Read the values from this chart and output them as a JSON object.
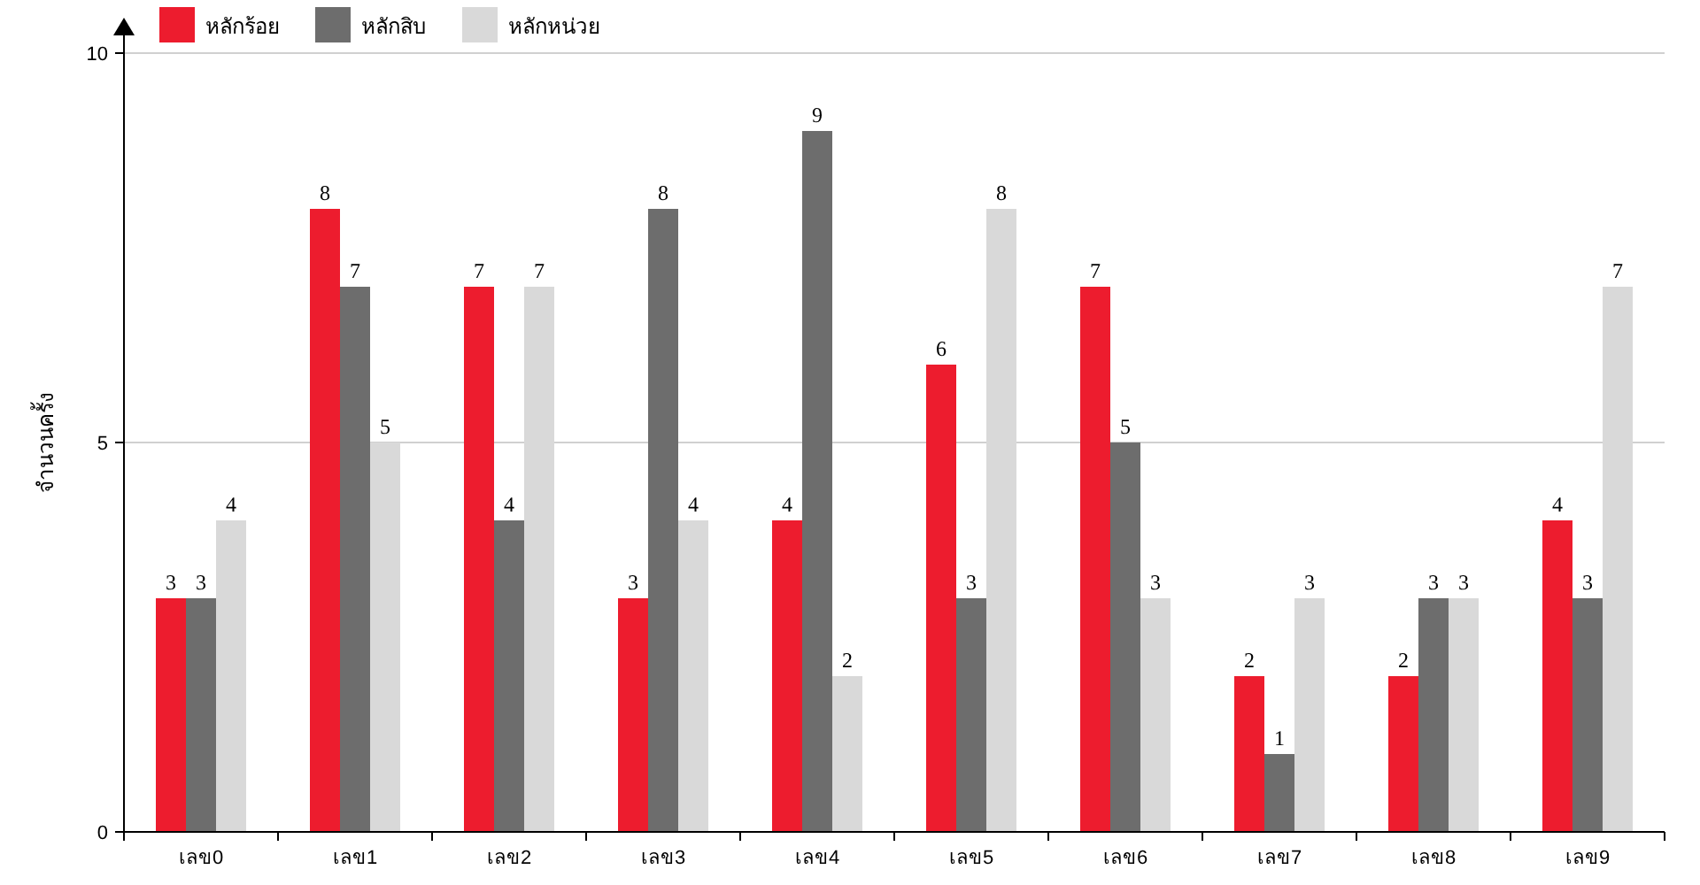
{
  "chart_data": {
    "type": "bar",
    "ylabel": "จำนวนครั้ง",
    "categories": [
      "เลข0",
      "เลข1",
      "เลข2",
      "เลข3",
      "เลข4",
      "เลข5",
      "เลข6",
      "เลข7",
      "เลข8",
      "เลข9"
    ],
    "series": [
      {
        "name": "หลักร้อย",
        "color": "#ed1c2e",
        "values": [
          3,
          8,
          7,
          3,
          4,
          6,
          7,
          2,
          2,
          4
        ]
      },
      {
        "name": "หลักสิบ",
        "color": "#6d6d6d",
        "values": [
          3,
          7,
          4,
          8,
          9,
          3,
          5,
          1,
          3,
          3
        ]
      },
      {
        "name": "หลักหน่วย",
        "color": "#d9d9d9",
        "values": [
          4,
          5,
          7,
          4,
          2,
          8,
          3,
          3,
          3,
          7
        ]
      }
    ],
    "ylim": [
      0,
      10
    ],
    "yticks": [
      0,
      5,
      10
    ],
    "grid": "y",
    "legend": "top left",
    "data_labels": true
  }
}
